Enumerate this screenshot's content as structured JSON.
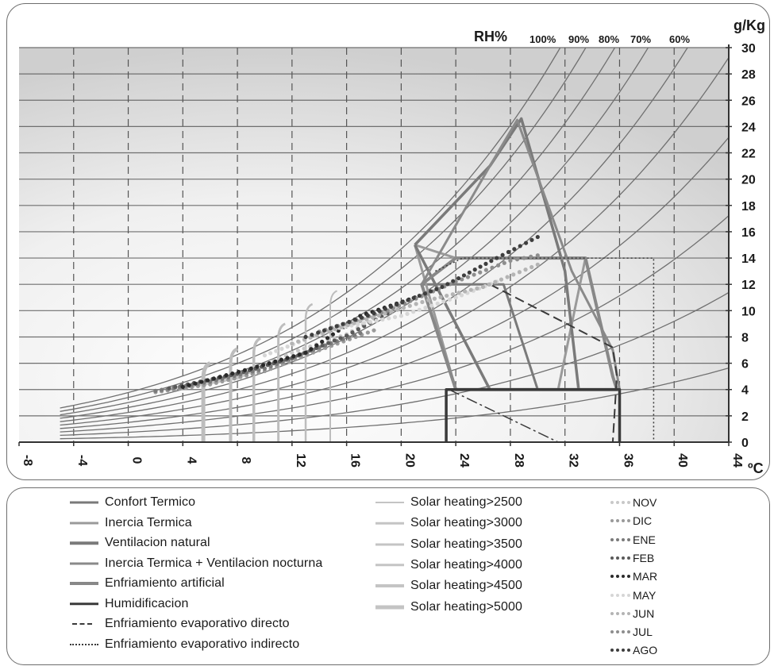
{
  "chart_data": {
    "type": "line",
    "chart": "psychrometric",
    "x_unit": "ºC",
    "y_unit": "g/Kg",
    "rh_label": "RH%",
    "x_ticks": [
      -8,
      -4,
      0,
      4,
      8,
      12,
      16,
      20,
      24,
      28,
      32,
      36,
      40,
      44
    ],
    "y_ticks": [
      0,
      2,
      4,
      6,
      8,
      10,
      12,
      14,
      16,
      18,
      20,
      22,
      24,
      26,
      28,
      30
    ],
    "xlim": [
      -8,
      44
    ],
    "ylim": [
      0,
      30
    ],
    "grid": true,
    "rh_curves": [
      {
        "label": "100%",
        "rh": 100
      },
      {
        "label": "90%",
        "rh": 90
      },
      {
        "label": "80%",
        "rh": 80
      },
      {
        "label": "70%",
        "rh": 70
      },
      {
        "label": "60%",
        "rh": 60
      },
      {
        "rh": 50
      },
      {
        "rh": 40
      },
      {
        "rh": 30
      },
      {
        "rh": 20
      },
      {
        "rh": 10
      }
    ],
    "zones": [
      {
        "name": "Confort Termico",
        "color": "#7a7a7a",
        "width": 3,
        "points": [
          [
            21.5,
            12
          ],
          [
            27.5,
            12
          ],
          [
            30,
            4
          ],
          [
            24,
            4
          ],
          [
            21.5,
            12
          ]
        ]
      },
      {
        "name": "Inercia Termica",
        "color": "#9a9a9a",
        "width": 3,
        "points": [
          [
            21,
            15
          ],
          [
            24,
            14
          ],
          [
            33.5,
            14
          ],
          [
            31.5,
            4
          ],
          [
            24,
            4
          ],
          [
            21,
            15
          ]
        ]
      },
      {
        "name": "Ventilacion natural",
        "color": "#7a7a7a",
        "width": 3.5,
        "points": [
          [
            21,
            15
          ],
          [
            26.5,
            21
          ],
          [
            28.8,
            24.6
          ],
          [
            32,
            13
          ],
          [
            33,
            4
          ],
          [
            26.5,
            4
          ],
          [
            21,
            15
          ]
        ]
      },
      {
        "name": "Inercia Termica + Ventilacion nocturna",
        "color": "#8a8a8a",
        "width": 3,
        "points": [
          [
            21.5,
            12
          ],
          [
            26.5,
            21
          ],
          [
            28.5,
            24.5
          ],
          [
            32.5,
            13
          ],
          [
            35.5,
            7
          ],
          [
            36,
            4
          ],
          [
            29.8,
            4
          ],
          [
            24,
            4
          ],
          [
            21.5,
            12
          ]
        ]
      },
      {
        "name": "Enfriamiento artificial",
        "color": "#888888",
        "width": 4,
        "points": [
          [
            24,
            14
          ],
          [
            33.5,
            14
          ],
          [
            35.5,
            5
          ],
          [
            35.8,
            4
          ],
          [
            24,
            4
          ],
          [
            21.5,
            12
          ],
          [
            24,
            14
          ]
        ]
      },
      {
        "name": "Humidificacion",
        "color": "#3a3a3a",
        "width": 3.5,
        "points": [
          [
            23.3,
            0
          ],
          [
            23.3,
            4
          ],
          [
            36,
            4
          ],
          [
            36,
            0
          ]
        ]
      },
      {
        "name": "Enfriamiento evaporativo directo",
        "color": "#3a3a3a",
        "width": 2,
        "dash": "12,6",
        "points": [
          [
            26.5,
            12
          ],
          [
            35.5,
            7.2
          ],
          [
            35.8,
            5
          ],
          [
            35.5,
            0
          ]
        ]
      },
      {
        "name": "dash-dot",
        "color": "#3a3a3a",
        "width": 1.5,
        "dash": "14,4,3,4",
        "points": [
          [
            23.5,
            4
          ],
          [
            31.5,
            0
          ]
        ]
      },
      {
        "name": "Enfriamiento evaporativo indirecto",
        "color": "#3a3a3a",
        "width": 1.5,
        "dash": "2,3",
        "points": [
          [
            22.5,
            13
          ],
          [
            24.5,
            14
          ],
          [
            38.5,
            14
          ],
          [
            38.5,
            0
          ]
        ]
      }
    ],
    "solar_lines": [
      {
        "name": "Solar heating>2500",
        "color": "#bdbdbd",
        "width": 2,
        "x": 14.8,
        "ytop": 11.5
      },
      {
        "name": "Solar heating>3000",
        "color": "#bdbdbd",
        "width": 2.5,
        "x": 13.0,
        "ytop": 10.5
      },
      {
        "name": "Solar heating>3500",
        "color": "#bdbdbd",
        "width": 3,
        "x": 11.0,
        "ytop": 9.0
      },
      {
        "name": "Solar heating>4000",
        "color": "#bdbdbd",
        "width": 3.5,
        "x": 9.2,
        "ytop": 7.9
      },
      {
        "name": "Solar heating>4500",
        "color": "#bdbdbd",
        "width": 4,
        "x": 7.5,
        "ytop": 7.1
      },
      {
        "name": "Solar heating>5000",
        "color": "#bdbdbd",
        "width": 5,
        "x": 5.5,
        "ytop": 6.0
      }
    ],
    "months": [
      {
        "name": "NOV",
        "color": "#c8c8c8",
        "points": [
          [
            3,
            4.0
          ],
          [
            8,
            4.9
          ],
          [
            12,
            6.8
          ],
          [
            16,
            8.2
          ],
          [
            20,
            10.6
          ]
        ]
      },
      {
        "name": "DIC",
        "color": "#9a9a9a",
        "points": [
          [
            2,
            3.8
          ],
          [
            6,
            4.4
          ],
          [
            10,
            5.4
          ],
          [
            14,
            7.0
          ],
          [
            18,
            8.5
          ]
        ]
      },
      {
        "name": "ENE",
        "color": "#7a7a7a",
        "points": [
          [
            2,
            3.9
          ],
          [
            6,
            4.6
          ],
          [
            10,
            5.6
          ],
          [
            14,
            7.2
          ],
          [
            17,
            8.3
          ]
        ]
      },
      {
        "name": "FEB",
        "color": "#5a5a5a",
        "points": [
          [
            3,
            4.1
          ],
          [
            8,
            5.2
          ],
          [
            12,
            6.4
          ],
          [
            16,
            8.1
          ],
          [
            19,
            9.8
          ]
        ]
      },
      {
        "name": "MAR",
        "color": "#2a2a2a",
        "points": [
          [
            4,
            4.2
          ],
          [
            9,
            5.6
          ],
          [
            13,
            6.8
          ],
          [
            17,
            9.6
          ],
          [
            21,
            11.0
          ]
        ]
      },
      {
        "name": "MAY",
        "color": "#d6d6d6",
        "points": [
          [
            10,
            6.6
          ],
          [
            15,
            8.6
          ],
          [
            20,
            9.6
          ],
          [
            24,
            11.0
          ],
          [
            27,
            12.2
          ]
        ]
      },
      {
        "name": "JUN",
        "color": "#b4b4b4",
        "points": [
          [
            12,
            7.5
          ],
          [
            17,
            9.2
          ],
          [
            22,
            10.8
          ],
          [
            26,
            11.8
          ],
          [
            30,
            13.5
          ]
        ]
      },
      {
        "name": "JUL",
        "color": "#8e8e8e",
        "points": [
          [
            14,
            8.4
          ],
          [
            19,
            10.0
          ],
          [
            24,
            12.2
          ],
          [
            28,
            13.8
          ],
          [
            30,
            14.2
          ]
        ]
      },
      {
        "name": "AGO",
        "color": "#3e3e3e",
        "points": [
          [
            13,
            8.0
          ],
          [
            18,
            9.8
          ],
          [
            23,
            11.8
          ],
          [
            27,
            14.0
          ],
          [
            30,
            15.6
          ]
        ]
      }
    ]
  },
  "legend": {
    "col1": [
      {
        "label": "Confort Termico",
        "color": "#7a7a7a",
        "style": "solid",
        "w": 3
      },
      {
        "label": "Inercia Termica",
        "color": "#9a9a9a",
        "style": "solid",
        "w": 3
      },
      {
        "label": "Ventilacion natural",
        "color": "#7a7a7a",
        "style": "solid",
        "w": 3.5
      },
      {
        "label": "Inercia Termica + Ventilacion nocturna",
        "color": "#8a8a8a",
        "style": "solid",
        "w": 3
      },
      {
        "label": "Enfriamiento artificial",
        "color": "#888888",
        "style": "solid",
        "w": 4
      },
      {
        "label": "Humidificacion",
        "color": "#3a3a3a",
        "style": "solid",
        "w": 3.5
      },
      {
        "label": "Enfriamiento evaporativo directo",
        "color": "#3a3a3a",
        "style": "dashed",
        "w": 2
      },
      {
        "label": "Enfriamiento evaporativo indirecto",
        "color": "#3a3a3a",
        "style": "dotted",
        "w": 2
      }
    ],
    "col2": [
      {
        "label": "Solar heating>2500",
        "color": "#c4c4c4",
        "style": "solid",
        "w": 2
      },
      {
        "label": "Solar heating>3000",
        "color": "#c4c4c4",
        "style": "solid",
        "w": 2.5
      },
      {
        "label": "Solar heating>3500",
        "color": "#c4c4c4",
        "style": "solid",
        "w": 3
      },
      {
        "label": "Solar heating>4000",
        "color": "#c4c4c4",
        "style": "solid",
        "w": 3.5
      },
      {
        "label": "Solar heating>4500",
        "color": "#c4c4c4",
        "style": "solid",
        "w": 4
      },
      {
        "label": "Solar heating>5000",
        "color": "#c4c4c4",
        "style": "solid",
        "w": 5
      }
    ],
    "col3": [
      {
        "label": "NOV",
        "color": "#c8c8c8"
      },
      {
        "label": "DIC",
        "color": "#9a9a9a"
      },
      {
        "label": "ENE",
        "color": "#7a7a7a"
      },
      {
        "label": "FEB",
        "color": "#5a5a5a"
      },
      {
        "label": "MAR",
        "color": "#2a2a2a"
      },
      {
        "label": "MAY",
        "color": "#d6d6d6"
      },
      {
        "label": "JUN",
        "color": "#b4b4b4"
      },
      {
        "label": "JUL",
        "color": "#8e8e8e"
      },
      {
        "label": "AGO",
        "color": "#3e3e3e"
      }
    ]
  }
}
